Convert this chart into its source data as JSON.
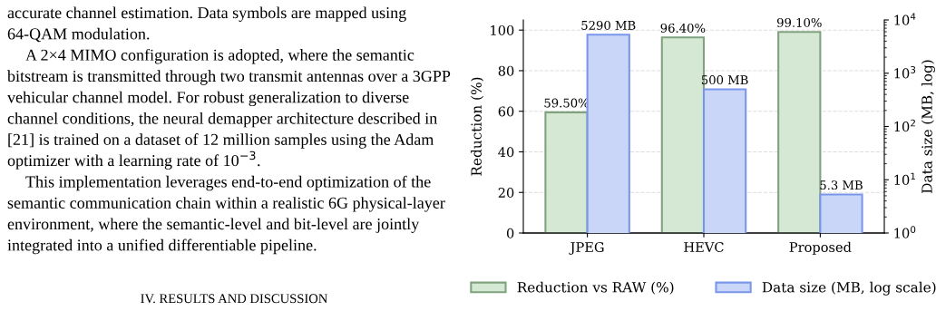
{
  "chart_data": {
    "type": "bar",
    "categories": [
      "JPEG",
      "HEVC",
      "Proposed"
    ],
    "series": [
      {
        "name": "Reduction vs RAW (%)",
        "color": "#d5e8d4",
        "values": [
          59.5,
          96.4,
          99.1
        ],
        "value_labels": [
          "59.50%",
          "96.40%",
          "99.10%"
        ]
      },
      {
        "name": "Data size (MB, log scale)",
        "color": "#c9d6f7",
        "values": [
          5290,
          500,
          5.3
        ],
        "value_labels": [
          "5290 MB",
          "500 MB",
          "5.3 MB"
        ],
        "axis": "y2"
      }
    ],
    "ylabel": "Reduction (%)",
    "y2label": "Data size (MB, log)",
    "ylim": [
      0,
      105
    ],
    "yticks": [
      0,
      20,
      40,
      60,
      80,
      100
    ],
    "y2lim": [
      1,
      10000
    ],
    "y2ticks": [
      {
        "value": 1,
        "label": "10$^{0}$"
      },
      {
        "value": 10,
        "label": "10$^{1}$"
      },
      {
        "value": 100,
        "label": "10$^{2}$"
      },
      {
        "value": 1000,
        "label": "10$^{3}$"
      },
      {
        "value": 10000,
        "label": "10$^{4}$"
      }
    ],
    "log": "y2",
    "grid": "y",
    "legend": "bottom",
    "annotations": [
      "accurate channel estimation. Data symbols are mapped using 64-QAM modulation.",
      "A 2×4 MIMO configuration is adopted, where the semantic bitstream is transmitted through two transmit antennas over a 3GPP vehicular channel model. For robust generalization to diverse channel conditions, the neural demapper architecture described in [21] is trained on a dataset of 12 million samples using the Adam optimizer with a learning rate of 10$^{−3}$.",
      "This implementation leverages end-to-end optimization of the semantic communication chain within a realistic 6G physical-layer environment, where the semantic-level and bit-level are jointly integrated into a unified differentiable pipeline.",
      "IV. RESULTS AND DISCUSSION"
    ]
  }
}
